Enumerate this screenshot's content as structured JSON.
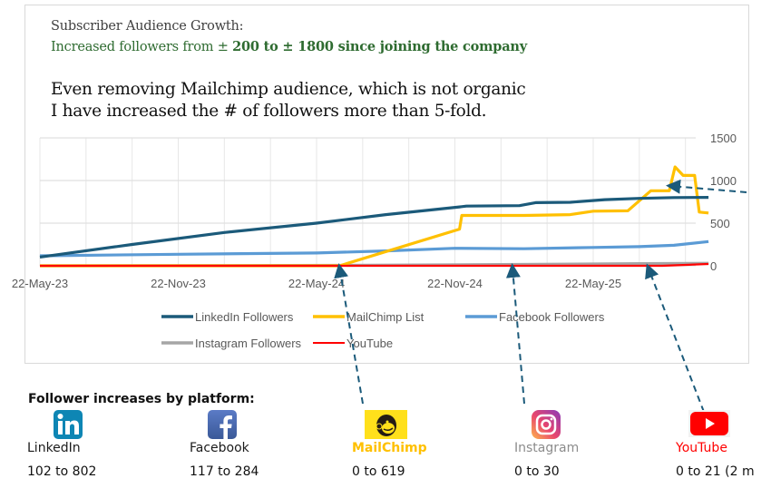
{
  "header": {
    "subtitle_line1": "Subscriber Audience Growth:",
    "subtitle_line2_prefix": "Increased followers from ± ",
    "subtitle_line2_bold": "200 to ± 1800 since joining the company",
    "headline_line1": "Even removing Mailchimp audience, which is not organic",
    "headline_line2": "I have increased the # of followers more than 5-fold."
  },
  "chart_data": {
    "type": "line",
    "title": "Subscriber Audience Growth",
    "xlabel": "",
    "ylabel": "",
    "x_ticks": [
      "22-May-23",
      "22-Nov-23",
      "22-May-24",
      "22-Nov-24",
      "22-May-25"
    ],
    "x_tick_months": [
      0,
      6,
      12,
      18,
      24
    ],
    "x_range_months": [
      0,
      29
    ],
    "y_ticks": [
      0,
      500,
      1000,
      1500
    ],
    "ylim": [
      0,
      1500
    ],
    "grid": true,
    "legend_position": "bottom",
    "series": [
      {
        "name": "LinkedIn Followers",
        "color": "#1b5a7a",
        "points": [
          [
            0,
            102
          ],
          [
            4,
            250
          ],
          [
            8,
            390
          ],
          [
            12,
            500
          ],
          [
            15,
            600
          ],
          [
            18.2,
            690
          ],
          [
            18.5,
            700
          ],
          [
            20.8,
            705
          ],
          [
            21.5,
            740
          ],
          [
            23,
            745
          ],
          [
            24.5,
            775
          ],
          [
            26,
            790
          ],
          [
            27.5,
            800
          ],
          [
            29,
            802
          ]
        ]
      },
      {
        "name": "MailChimp List",
        "color": "#ffc000",
        "points": [
          [
            0,
            0
          ],
          [
            13,
            0
          ],
          [
            18.2,
            430
          ],
          [
            18.3,
            590
          ],
          [
            21,
            590
          ],
          [
            23,
            600
          ],
          [
            24,
            640
          ],
          [
            25.5,
            645
          ],
          [
            26.5,
            880
          ],
          [
            27.3,
            880
          ],
          [
            27.55,
            1160
          ],
          [
            27.9,
            1060
          ],
          [
            28.4,
            1060
          ],
          [
            28.6,
            630
          ],
          [
            29,
            619
          ]
        ]
      },
      {
        "name": "Facebook Followers",
        "color": "#5b9bd5",
        "points": [
          [
            0,
            117
          ],
          [
            6,
            135
          ],
          [
            12,
            150
          ],
          [
            15,
            175
          ],
          [
            18,
            205
          ],
          [
            21,
            200
          ],
          [
            24,
            215
          ],
          [
            26,
            225
          ],
          [
            27.5,
            240
          ],
          [
            29,
            284
          ]
        ]
      },
      {
        "name": "Instagram Followers",
        "color": "#a6a6a6",
        "points": [
          [
            0,
            0
          ],
          [
            13,
            5
          ],
          [
            20,
            15
          ],
          [
            26,
            25
          ],
          [
            29,
            30
          ]
        ]
      },
      {
        "name": "YouTube",
        "color": "#ff0000",
        "points": [
          [
            0,
            0
          ],
          [
            27,
            0
          ],
          [
            29,
            21
          ]
        ]
      }
    ],
    "annotation_arrows": [
      {
        "target": "MailChimp List start",
        "from": "MailChimp icon"
      },
      {
        "target": "Instagram start",
        "from": "Instagram icon"
      },
      {
        "target": "YouTube start",
        "from": "YouTube icon"
      },
      {
        "target": "MailChimp drop",
        "from": "right edge"
      }
    ]
  },
  "bottom": {
    "title": "Follower increases by platform:",
    "platforms": [
      {
        "name": "LinkedIn",
        "range": "102 to 802",
        "icon": "linkedin-icon",
        "color": "#1b1b1b"
      },
      {
        "name": "Facebook",
        "range": "117 to 284",
        "icon": "facebook-icon",
        "color": "#1b1b1b"
      },
      {
        "name": "MailChimp",
        "range": "0 to 619",
        "icon": "mailchimp-icon",
        "color": "#ffc000"
      },
      {
        "name": "Instagram",
        "range": "0 to 30",
        "icon": "instagram-icon",
        "color": "#8c8c8c"
      },
      {
        "name": "YouTube",
        "range": "0 to 21 (2 m",
        "icon": "youtube-icon",
        "color": "#ff0000"
      }
    ]
  }
}
